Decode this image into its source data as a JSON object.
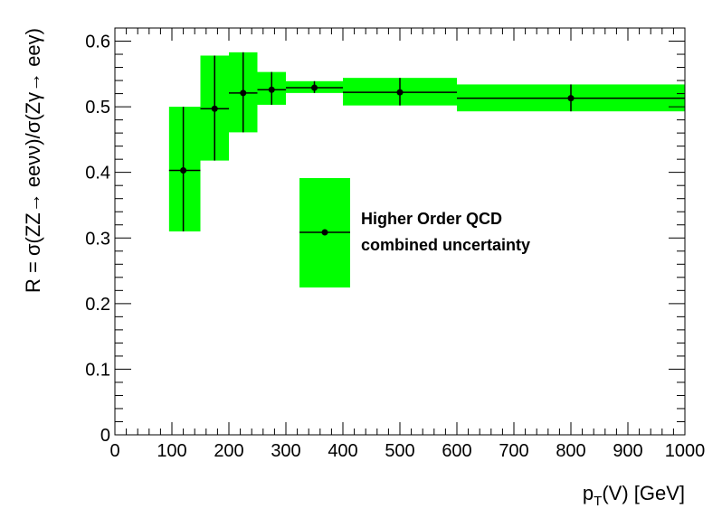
{
  "chart_data": {
    "type": "scatter",
    "title": "",
    "xlabel": "p_T(V) [GeV]",
    "xlabel_main": "p",
    "xlabel_sub": "T",
    "xlabel_rest": "(V) [GeV]",
    "ylabel": "R = σ(ZZ→ eeνν)/σ(Zγ→ eeγ)",
    "xlim": [
      0,
      1000
    ],
    "ylim": [
      0,
      0.62
    ],
    "x_ticks": [
      0,
      100,
      200,
      300,
      400,
      500,
      600,
      700,
      800,
      900,
      1000
    ],
    "x_tick_labels": [
      "0",
      "100",
      "200",
      "300",
      "400",
      "500",
      "600",
      "700",
      "800",
      "900",
      "1000"
    ],
    "y_ticks": [
      0,
      0.1,
      0.2,
      0.3,
      0.4,
      0.5,
      0.6
    ],
    "y_tick_labels": [
      "0",
      "0.1",
      "0.2",
      "0.3",
      "0.4",
      "0.5",
      "0.6"
    ],
    "grid": false,
    "legend_position": "center",
    "band_color": "#00ff00",
    "marker_color": "#000000",
    "series": [
      {
        "name": "Higher Order QCD combined uncertainty",
        "points": [
          {
            "x": 120,
            "xlow": 95,
            "xhigh": 150,
            "y": 0.403,
            "ylow": 0.31,
            "yhigh": 0.5
          },
          {
            "x": 175,
            "xlow": 150,
            "xhigh": 200,
            "y": 0.497,
            "ylow": 0.418,
            "yhigh": 0.578
          },
          {
            "x": 225,
            "xlow": 200,
            "xhigh": 250,
            "y": 0.521,
            "ylow": 0.461,
            "yhigh": 0.583
          },
          {
            "x": 275,
            "xlow": 250,
            "xhigh": 300,
            "y": 0.526,
            "ylow": 0.503,
            "yhigh": 0.553
          },
          {
            "x": 350,
            "xlow": 300,
            "xhigh": 400,
            "y": 0.529,
            "ylow": 0.521,
            "yhigh": 0.539
          },
          {
            "x": 500,
            "xlow": 400,
            "xhigh": 600,
            "y": 0.522,
            "ylow": 0.502,
            "yhigh": 0.544
          },
          {
            "x": 800,
            "xlow": 600,
            "xhigh": 1000,
            "y": 0.513,
            "ylow": 0.493,
            "yhigh": 0.534
          }
        ]
      }
    ],
    "legend": {
      "lines": [
        "Higher Order QCD",
        "combined uncertainty"
      ]
    }
  }
}
